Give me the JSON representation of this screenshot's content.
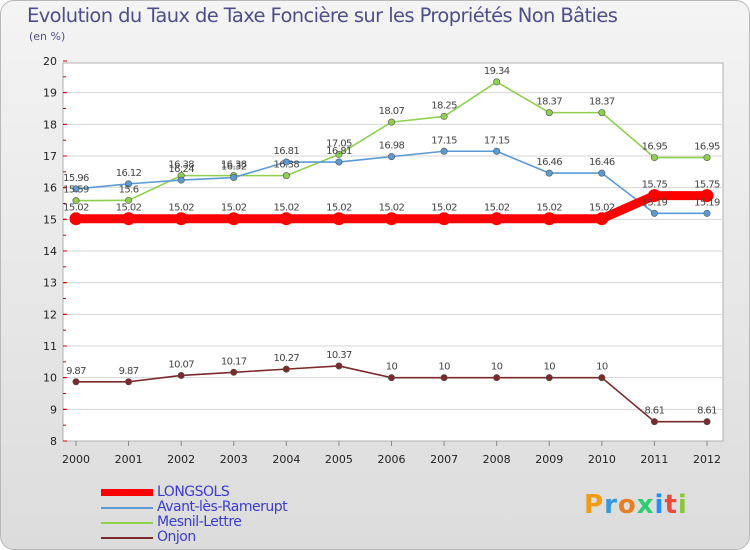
{
  "title": "Evolution du Taux de Taxe Foncière sur les Propriétés Non Bâties",
  "subtitle": "(en %)",
  "logo": {
    "text": "Proxiti"
  },
  "chart_data": {
    "type": "line",
    "title": "Evolution du Taux de Taxe Foncière sur les Propriétés Non Bâties",
    "ylabel": "(en %)",
    "xlabel": "",
    "x": [
      "2000",
      "2001",
      "2002",
      "2003",
      "2004",
      "2005",
      "2006",
      "2007",
      "2008",
      "2009",
      "2010",
      "2011",
      "2012"
    ],
    "yticks": [
      "8",
      "9",
      "10",
      "11",
      "12",
      "13",
      "14",
      "15",
      "16",
      "17",
      "18",
      "19",
      "20"
    ],
    "ylim": [
      8,
      20
    ],
    "grid": true,
    "legend_position": "bottom-left",
    "series": [
      {
        "name": "LONGSOLS",
        "color": "#ff0000",
        "values": [
          15.02,
          15.02,
          15.02,
          15.02,
          15.02,
          15.02,
          15.02,
          15.02,
          15.02,
          15.02,
          15.02,
          15.75,
          15.75
        ],
        "labels": [
          "15.02",
          "15.02",
          "15.02",
          "15.02",
          "15.02",
          "15.02",
          "15.02",
          "15.02",
          "15.02",
          "15.02",
          "15.02",
          "15.75",
          "15.75"
        ]
      },
      {
        "name": "Avant-lès-Ramerupt",
        "color": "#5b9bd5",
        "values": [
          15.96,
          16.12,
          16.24,
          16.32,
          16.81,
          16.81,
          16.98,
          17.15,
          17.15,
          16.46,
          16.46,
          15.19,
          15.19
        ],
        "labels": [
          "15.96",
          "16.12",
          "16.24",
          "16.32",
          "16.81",
          "16.81",
          "16.98",
          "17.15",
          "17.15",
          "16.46",
          "16.46",
          "15.19",
          "15.19"
        ]
      },
      {
        "name": "Mesnil-Lettre",
        "color": "#8fd14f",
        "values": [
          15.59,
          15.6,
          16.38,
          16.38,
          16.38,
          17.05,
          18.07,
          18.25,
          19.34,
          18.37,
          18.37,
          16.95,
          16.95
        ],
        "labels": [
          "15.59",
          "15.6",
          "16.38",
          "16.38",
          "16.38",
          "17.05",
          "18.07",
          "18.25",
          "19.34",
          "18.37",
          "18.37",
          "16.95",
          "16.95"
        ]
      },
      {
        "name": "Onjon",
        "color": "#7a2a2a",
        "values": [
          9.87,
          9.87,
          10.07,
          10.17,
          10.27,
          10.37,
          10,
          10,
          10,
          10,
          10,
          8.61,
          8.61
        ],
        "labels": [
          "9.87",
          "9.87",
          "10.07",
          "10.17",
          "10.27",
          "10.37",
          "10",
          "10",
          "10",
          "10",
          "10",
          "8.61",
          "8.61"
        ]
      }
    ]
  }
}
